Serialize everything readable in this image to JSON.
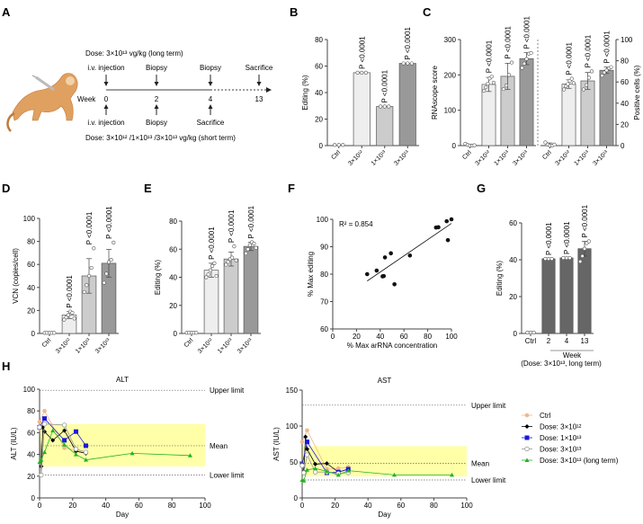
{
  "panel_letters": [
    "A",
    "B",
    "C",
    "D",
    "E",
    "F",
    "G",
    "H"
  ],
  "colors": {
    "axis": "#444444",
    "bar_light": "#eeeeee",
    "bar_mid": "#cccccc",
    "bar_dark": "#999999",
    "bar_g": "#666666",
    "normal_band": "#ffffa8",
    "ctrl": "#f0b889",
    "dose_3e12": "#000000",
    "dose_1e13": "#1a1ad6",
    "dose_3e13": "#999999",
    "dose_long": "#22b422",
    "monkey_body": "#e0a060",
    "monkey_light": "#f0d2a8"
  },
  "panel_a": {
    "illustration": "monkey-with-syringe-icon",
    "top_dose": "Dose: 3×10¹³ vg/kg (long term)",
    "top_events": [
      "i.v. injection",
      "Biopsy",
      "Biopsy",
      "Sacrifice"
    ],
    "week_label": "Week",
    "weeks": [
      "0",
      "2",
      "4",
      "13"
    ],
    "bottom_events": [
      "i.v. injection",
      "Biopsy",
      "Sacrifice"
    ],
    "bottom_dose": "Dose: 3×10¹² /1×10¹³ /3×10¹³ vg/kg (short term)"
  },
  "chart_data": [
    {
      "panel": "B",
      "type": "bar",
      "ylabel": "Editing (%)",
      "ylim": [
        0,
        80
      ],
      "yticks": [
        0,
        20,
        40,
        60,
        80
      ],
      "categories": [
        "Ctrl",
        "3×10¹²",
        "1×10¹³",
        "3×10¹³"
      ],
      "values": [
        0.5,
        55,
        29.5,
        62
      ],
      "points": [
        [
          0.5,
          0.5,
          0.5
        ],
        [
          55,
          55,
          55
        ],
        [
          29.5,
          29.5,
          29.5
        ],
        [
          62,
          62,
          62
        ]
      ],
      "pvalues": [
        "",
        "P <0.0001",
        "P <0.0001",
        "P <0.0001"
      ]
    },
    {
      "panel": "C-left",
      "type": "bar",
      "ylabel": "RNAscope score",
      "ylim": [
        0,
        300
      ],
      "yticks": [
        0,
        100,
        200,
        300
      ],
      "categories": [
        "Ctrl",
        "3×10¹²",
        "1×10¹³",
        "3×10¹³"
      ],
      "values": [
        2,
        173,
        196,
        246
      ],
      "errors": [
        2,
        20,
        37,
        17
      ],
      "points": [
        [
          5,
          2,
          0,
          0,
          1
        ],
        [
          155,
          165,
          175,
          190,
          195,
          178
        ],
        [
          160,
          170,
          200,
          235
        ],
        [
          220,
          232,
          245,
          260,
          262
        ]
      ],
      "pvalues": [
        "",
        "P <0.0001",
        "P <0.0001",
        "P <0.0001"
      ]
    },
    {
      "panel": "C-right",
      "type": "bar",
      "ylabel": "Positive cells (%)",
      "ylim": [
        0,
        100
      ],
      "yticks": [
        0,
        20,
        40,
        60,
        80,
        100
      ],
      "categories": [
        "Ctrl",
        "3×10¹²",
        "1×10¹³",
        "3×10¹³"
      ],
      "values": [
        1,
        58,
        61,
        71
      ],
      "errors": [
        1.5,
        4,
        8,
        3
      ],
      "points": [
        [
          3,
          1,
          0,
          0,
          1
        ],
        [
          53,
          56,
          58,
          61,
          63,
          59
        ],
        [
          53,
          57,
          64,
          70
        ],
        [
          66,
          69,
          71,
          73,
          74
        ]
      ],
      "pvalues": [
        "",
        "P <0.0001",
        "P <0.0001",
        "P <0.0001"
      ]
    },
    {
      "panel": "D",
      "type": "bar",
      "ylabel": "VCN (copies/cell)",
      "ylim": [
        0,
        100
      ],
      "yticks": [
        0,
        20,
        40,
        60,
        80,
        100
      ],
      "categories": [
        "Ctrl",
        "3×10¹²",
        "1×10¹³",
        "3×10¹³"
      ],
      "values": [
        0.5,
        16,
        50,
        61
      ],
      "errors": [
        0.5,
        3,
        15,
        12
      ],
      "points": [
        [
          0.5,
          0.5,
          0.5,
          0.5,
          0.5
        ],
        [
          12,
          14,
          16,
          19,
          18,
          13
        ],
        [
          36,
          42,
          50,
          57,
          74
        ],
        [
          44,
          52,
          62,
          64,
          79
        ]
      ],
      "pvalues": [
        "",
        "P <0.0001",
        "P <0.0001",
        "P <0.0001"
      ]
    },
    {
      "panel": "E",
      "type": "bar",
      "ylabel": "Editing (%)",
      "ylim": [
        0,
        80
      ],
      "yticks": [
        0,
        20,
        40,
        60,
        80
      ],
      "categories": [
        "Ctrl",
        "3×10¹²",
        "1×10¹³",
        "3×10¹³"
      ],
      "values": [
        0.5,
        45,
        53,
        62
      ],
      "errors": [
        0.5,
        5,
        5,
        3
      ],
      "points": [
        [
          0.5,
          0.5,
          0.5,
          0.5,
          0.5
        ],
        [
          40,
          42,
          45,
          48,
          50,
          41
        ],
        [
          49,
          51,
          53,
          54,
          62,
          52
        ],
        [
          57,
          60,
          63,
          65,
          64,
          61
        ]
      ],
      "pvalues": [
        "",
        "P <0.0001",
        "P <0.0001",
        "P <0.0001"
      ]
    },
    {
      "panel": "F",
      "type": "scatter",
      "xlabel": "% Max arRNA concentration",
      "ylabel": "% Max editing",
      "xlim": [
        0,
        100
      ],
      "ylim": [
        60,
        100
      ],
      "xticks": [
        0,
        20,
        40,
        60,
        80,
        100
      ],
      "yticks": [
        60,
        70,
        80,
        90,
        100
      ],
      "annotation": "R² = 0.854",
      "x": [
        29,
        37,
        42,
        43,
        44,
        49,
        52,
        65,
        87,
        89,
        96,
        97,
        100
      ],
      "y": [
        80,
        81.3,
        79.2,
        79.3,
        86.1,
        87.6,
        76.3,
        86.8,
        97,
        97.1,
        99.3,
        92.4,
        100
      ],
      "fit": {
        "x": [
          29,
          100
        ],
        "y": [
          77.5,
          98.5
        ]
      }
    },
    {
      "panel": "G",
      "type": "bar",
      "ylabel": "Editing (%)",
      "ylim": [
        0,
        60
      ],
      "yticks": [
        0,
        20,
        40,
        60
      ],
      "categories": [
        "Ctrl",
        "2",
        "4",
        "13"
      ],
      "xlabel": "Week",
      "xlabel2": "(Dose: 3×10¹³, long term)",
      "values": [
        0.5,
        40.5,
        41,
        46
      ],
      "errors": [
        0.5,
        0,
        0,
        4
      ],
      "points": [
        [
          0.5,
          0.5,
          0.5
        ],
        [
          40.5,
          40.5,
          40.5
        ],
        [
          41,
          41,
          41
        ],
        [
          39,
          42,
          46,
          49,
          50
        ]
      ],
      "pvalues": [
        "",
        "P <0.0001",
        "P <0.0001",
        "P <0.0001"
      ]
    },
    {
      "panel": "H-ALT",
      "type": "line",
      "title": "ALT",
      "xlabel": "Day",
      "ylabel": "ALT (IU/L)",
      "xlim": [
        0,
        100
      ],
      "ylim": [
        0,
        100
      ],
      "xticks": [
        0,
        20,
        40,
        60,
        80,
        100
      ],
      "yticks": [
        0,
        20,
        40,
        60,
        80,
        100
      ],
      "band": [
        29,
        68
      ],
      "reference_lines": [
        {
          "label": "Upper limit",
          "value": 99
        },
        {
          "label": "Mean",
          "value": 48
        },
        {
          "label": "Lower limit",
          "value": 21
        }
      ],
      "series": [
        {
          "name": "Ctrl",
          "color_key": "ctrl",
          "marker": "circle",
          "x": [
            0,
            3,
            15,
            22,
            28
          ],
          "y": [
            70,
            80,
            46,
            44,
            41
          ]
        },
        {
          "name": "Dose: 3×10¹²",
          "color_key": "dose_3e12",
          "marker": "diamond",
          "x": [
            0,
            1,
            2,
            3,
            8,
            15,
            22,
            28
          ],
          "y": [
            65,
            29,
            65,
            61,
            53,
            62,
            43,
            41
          ]
        },
        {
          "name": "Dose: 1×10¹³",
          "color_key": "dose_1e13",
          "marker": "square",
          "x": [
            0,
            3,
            15,
            22,
            28
          ],
          "y": [
            65,
            73,
            53,
            61,
            48
          ]
        },
        {
          "name": "Dose: 3×10¹³",
          "color_key": "dose_3e13",
          "marker": "open-circle",
          "x": [
            0,
            1,
            3,
            15,
            22,
            28
          ],
          "y": [
            65,
            21,
            68,
            67,
            45,
            42
          ]
        },
        {
          "name": "Dose: 3×10¹³ (long term)",
          "color_key": "dose_long",
          "marker": "triangle",
          "x": [
            0,
            1,
            3,
            8,
            15,
            22,
            28,
            56,
            91
          ],
          "y": [
            33,
            35,
            42,
            62,
            49,
            40,
            35,
            41,
            39
          ]
        }
      ]
    },
    {
      "panel": "H-AST",
      "type": "line",
      "title": "AST",
      "xlabel": "Day",
      "ylabel": "AST (IU/L)",
      "xlim": [
        0,
        100
      ],
      "ylim": [
        0,
        150
      ],
      "xticks": [
        0,
        20,
        40,
        60,
        80,
        100
      ],
      "yticks": [
        0,
        50,
        100,
        150
      ],
      "band": [
        30,
        72
      ],
      "reference_lines": [
        {
          "label": "Upper limit",
          "value": 129
        },
        {
          "label": "Mean",
          "value": 48
        },
        {
          "label": "Lower limit",
          "value": 25
        }
      ],
      "series": [
        {
          "name": "Ctrl",
          "color_key": "ctrl",
          "marker": "circle",
          "x": [
            0,
            3,
            15,
            22,
            28
          ],
          "y": [
            78,
            94,
            40,
            41,
            43
          ]
        },
        {
          "name": "Dose: 3×10¹²",
          "color_key": "dose_3e12",
          "marker": "diamond",
          "x": [
            0,
            1,
            2,
            3,
            8,
            15,
            22,
            28
          ],
          "y": [
            45,
            37,
            85,
            68,
            47,
            48,
            36,
            40
          ]
        },
        {
          "name": "Dose: 1×10¹³",
          "color_key": "dose_1e13",
          "marker": "square",
          "x": [
            0,
            3,
            15,
            22,
            28
          ],
          "y": [
            46,
            78,
            35,
            36,
            40
          ]
        },
        {
          "name": "Dose: 3×10¹³",
          "color_key": "dose_3e13",
          "marker": "open-circle",
          "x": [
            0,
            1,
            3,
            8,
            15,
            22,
            28
          ],
          "y": [
            45,
            35,
            60,
            36,
            36,
            34,
            35
          ]
        },
        {
          "name": "Dose: 3×10¹³ (long term)",
          "color_key": "dose_long",
          "marker": "triangle",
          "x": [
            0,
            1,
            3,
            8,
            15,
            22,
            28,
            56,
            91
          ],
          "y": [
            25,
            24,
            39,
            41,
            37,
            32,
            38,
            32,
            32
          ]
        }
      ]
    }
  ],
  "legend": {
    "position": "right",
    "items": [
      "Ctrl",
      "Dose: 3×10¹²",
      "Dose: 1×10¹³",
      "Dose: 3×10¹³",
      "Dose: 3×10¹³ (long term)"
    ]
  }
}
